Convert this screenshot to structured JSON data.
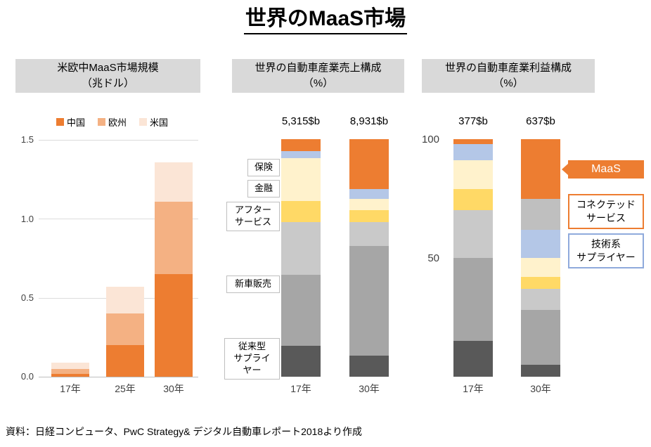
{
  "title": "世界のMaaS市場",
  "source_note": "資料：日経コンピュータ、PwC Strategy& デジタル自動車レポート2018より作成",
  "headers": [
    {
      "line1": "米欧中MaaS市場規模",
      "line2": "（兆ドル）"
    },
    {
      "line1": "世界の自動車産業売上構成",
      "line2": "（%）"
    },
    {
      "line1": "世界の自動車産業利益構成",
      "line2": "（%）"
    }
  ],
  "colors": {
    "header_bg": "#D9D9D9",
    "china_orange": "#ED7D31",
    "europe_orange": "#F4B183",
    "us_orange": "#FBE5D6",
    "dark_gray": "#595959",
    "mid_gray": "#A6A6A6",
    "light_gray": "#C9C9C9",
    "connected_gray": "#BFBFBF",
    "finance_yellow": "#FFD966",
    "insurance_cream": "#FFF2CC",
    "tech_blue": "#B4C7E7",
    "maas_orange": "#ED7D31"
  },
  "chart_data": [
    {
      "type": "bar",
      "variant": "stacked",
      "title": "米欧中MaaS市場規模（兆ドル）",
      "categories": [
        "17年",
        "25年",
        "30年"
      ],
      "series": [
        {
          "name": "中国",
          "color": "#ED7D31",
          "values": [
            0.02,
            0.2,
            0.65
          ]
        },
        {
          "name": "欧州",
          "color": "#F4B183",
          "values": [
            0.03,
            0.2,
            0.46
          ]
        },
        {
          "name": "米国",
          "color": "#FBE5D6",
          "values": [
            0.04,
            0.17,
            0.25
          ]
        }
      ],
      "ylim": [
        0,
        1.5
      ],
      "ytick_labels": [
        "1.5",
        "1.0",
        "0.5",
        "0.0"
      ],
      "legend_position": "top",
      "grid": true
    },
    {
      "type": "bar",
      "variant": "stacked-100",
      "title": "世界の自動車産業売上構成（%）",
      "categories": [
        "17年",
        "30年"
      ],
      "bar_totals": [
        "5,315$b",
        "8,931$b"
      ],
      "ylim": [
        0,
        100
      ],
      "segments": [
        {
          "name": "従来型サプライヤー",
          "color": "#595959",
          "values": [
            13,
            9
          ]
        },
        {
          "name": "新車販売",
          "color": "#A6A6A6",
          "values": [
            30,
            46
          ]
        },
        {
          "name": "アフターサービス",
          "color": "#C9C9C9",
          "values": [
            22,
            10
          ]
        },
        {
          "name": "金融",
          "color": "#FFD966",
          "values": [
            9,
            5
          ]
        },
        {
          "name": "保険",
          "color": "#FFF2CC",
          "values": [
            18,
            5
          ]
        },
        {
          "name": "技術系サプライヤー",
          "color": "#B4C7E7",
          "values": [
            3,
            4
          ]
        },
        {
          "name": "MaaS",
          "color": "#ED7D31",
          "values": [
            5,
            21
          ]
        }
      ]
    },
    {
      "type": "bar",
      "variant": "stacked-100",
      "title": "世界の自動車産業利益構成（%）",
      "categories": [
        "17年",
        "30年"
      ],
      "bar_totals": [
        "377$b",
        "637$b"
      ],
      "ylim": [
        0,
        100
      ],
      "ytick_labels": [
        "100",
        "50"
      ],
      "segments": [
        {
          "name": "従来型サプライヤー",
          "color": "#595959",
          "values": [
            15,
            5
          ]
        },
        {
          "name": "新車販売",
          "color": "#A6A6A6",
          "values": [
            35,
            23
          ]
        },
        {
          "name": "アフターサービス",
          "color": "#C9C9C9",
          "values": [
            20,
            9
          ]
        },
        {
          "name": "金融",
          "color": "#FFD966",
          "values": [
            9,
            5
          ]
        },
        {
          "name": "保険",
          "color": "#FFF2CC",
          "values": [
            12,
            8
          ]
        },
        {
          "name": "技術系サプライヤー",
          "color": "#B4C7E7",
          "values": [
            7,
            12
          ]
        },
        {
          "name": "コネクテッドサービス",
          "color": "#BFBFBF",
          "values": [
            0,
            13
          ]
        },
        {
          "name": "MaaS",
          "color": "#ED7D31",
          "values": [
            2,
            25
          ]
        }
      ]
    }
  ],
  "callouts_revenue": [
    {
      "text": "保険"
    },
    {
      "text": "金融"
    },
    {
      "text": "アフター\nサービス"
    },
    {
      "text": "新車販売"
    },
    {
      "text": "従来型\nサプライ\nヤー"
    }
  ],
  "callouts_profit": [
    {
      "text": "MaaS"
    },
    {
      "text": "コネクテッド\nサービス"
    },
    {
      "text": "技術系\nサプライヤー"
    }
  ]
}
